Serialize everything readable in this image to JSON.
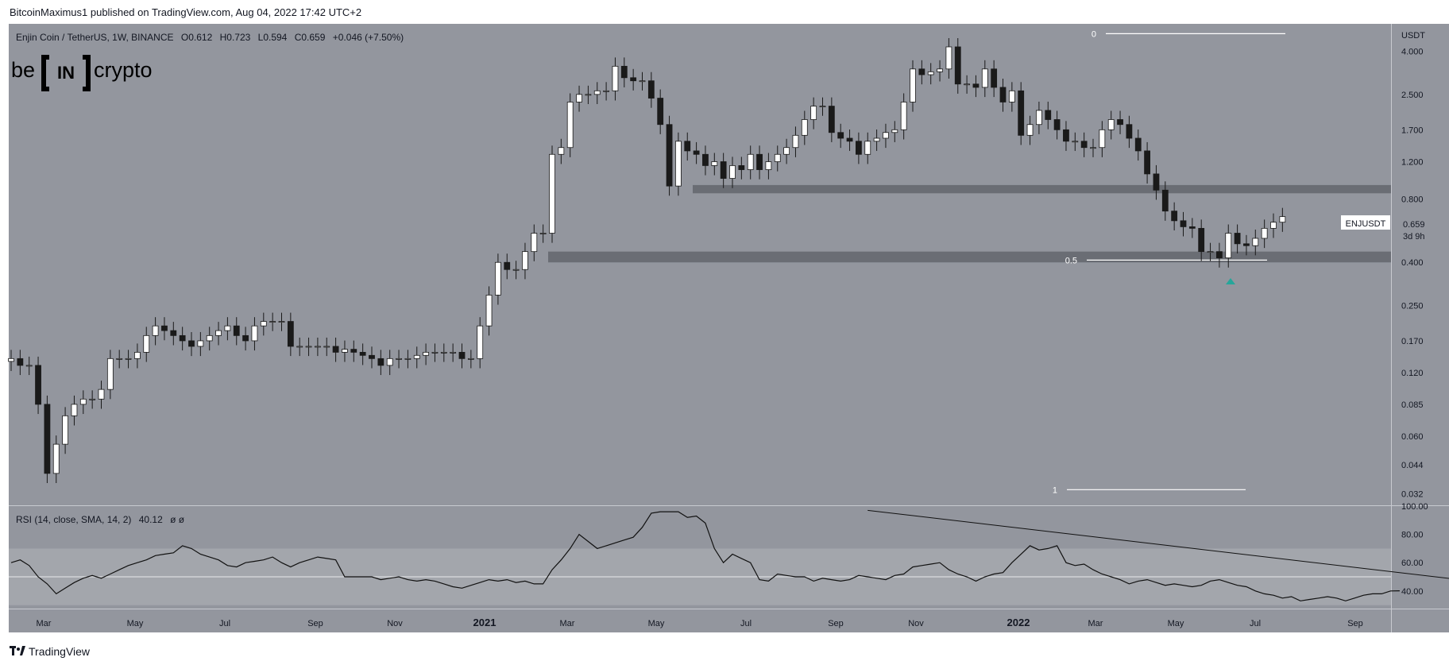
{
  "publish_line": "BitcoinMaximus1 published on TradingView.com, Aug 04, 2022 17:42 UTC+2",
  "footer_brand": "TradingView",
  "logo": {
    "left": "be",
    "middle": "IN",
    "right": "crypto"
  },
  "colors": {
    "pane_bg": "#93969e",
    "candle_up": "#ffffff",
    "candle_down": "#1a1a1a",
    "zone": "#5c5f66",
    "rsi_band": "#a3a6ac",
    "arrow": "#26a69a"
  },
  "chart_data": [
    {
      "type": "candlestick",
      "title": "Enjin Coin / TetherUS, 1W, BINANCE",
      "ohlc": {
        "O_label": "O",
        "O": "0.612",
        "H_label": "H",
        "H": "0.723",
        "L_label": "L",
        "L": "0.594",
        "C_label": "C",
        "C": "0.659",
        "change": "+0.046 (+7.50%)"
      },
      "y_axis_unit": "USDT",
      "y_scale": "log",
      "y_ticks": [
        "4.000",
        "2.500",
        "1.700",
        "1.200",
        "0.800",
        "0.400",
        "0.250",
        "0.170",
        "0.120",
        "0.085",
        "0.060",
        "0.044",
        "0.032"
      ],
      "ylim": [
        0.028,
        5.4
      ],
      "x_ticks": [
        "Mar",
        "May",
        "Jul",
        "Sep",
        "Nov",
        "2021",
        "Mar",
        "May",
        "Jul",
        "Sep",
        "Nov",
        "2022",
        "Mar",
        "May",
        "Jul",
        "Sep"
      ],
      "symbol_label": "ENJUSDT",
      "last_price": "0.659",
      "countdown": "3d 9h",
      "fib_levels": [
        {
          "label": "0",
          "value": 4.85
        },
        {
          "label": "0.5",
          "value": 0.41
        },
        {
          "label": "1",
          "value": 0.0335
        }
      ],
      "zones": [
        {
          "low": 0.85,
          "high": 0.93
        },
        {
          "low": 0.4,
          "high": 0.45
        }
      ],
      "weekly_closes": [
        0.14,
        0.13,
        0.13,
        0.085,
        0.04,
        0.055,
        0.075,
        0.085,
        0.09,
        0.09,
        0.1,
        0.14,
        0.14,
        0.14,
        0.15,
        0.18,
        0.2,
        0.19,
        0.18,
        0.17,
        0.16,
        0.17,
        0.18,
        0.19,
        0.2,
        0.18,
        0.17,
        0.2,
        0.21,
        0.21,
        0.21,
        0.16,
        0.16,
        0.16,
        0.16,
        0.16,
        0.15,
        0.155,
        0.15,
        0.145,
        0.14,
        0.13,
        0.14,
        0.14,
        0.14,
        0.145,
        0.15,
        0.15,
        0.15,
        0.15,
        0.14,
        0.14,
        0.2,
        0.28,
        0.4,
        0.37,
        0.37,
        0.45,
        0.55,
        0.55,
        1.3,
        1.4,
        2.3,
        2.5,
        2.5,
        2.6,
        2.6,
        3.4,
        3.0,
        2.9,
        2.9,
        2.4,
        1.8,
        0.92,
        1.5,
        1.35,
        1.3,
        1.15,
        1.2,
        1.0,
        1.15,
        1.1,
        1.3,
        1.1,
        1.2,
        1.3,
        1.4,
        1.6,
        1.9,
        2.2,
        2.2,
        1.65,
        1.55,
        1.5,
        1.3,
        1.5,
        1.55,
        1.65,
        1.7,
        2.3,
        3.3,
        3.1,
        3.2,
        3.3,
        4.2,
        2.8,
        2.8,
        2.7,
        3.3,
        2.7,
        2.3,
        2.6,
        1.6,
        1.8,
        2.1,
        1.9,
        1.7,
        1.5,
        1.5,
        1.4,
        1.4,
        1.7,
        1.9,
        1.8,
        1.55,
        1.35,
        1.05,
        0.88,
        0.7,
        0.63,
        0.59,
        0.58,
        0.45,
        0.45,
        0.42,
        0.55,
        0.49,
        0.48,
        0.52,
        0.58,
        0.62,
        0.659
      ]
    },
    {
      "type": "line",
      "title": "RSI (14, close, SMA, 14, 2)",
      "value": "40.12",
      "extra": "ø ø",
      "y_ticks": [
        "100.00",
        "80.00",
        "60.00",
        "40.00"
      ],
      "ylim": [
        27,
        100
      ],
      "band": [
        30,
        70
      ],
      "mid": 50,
      "trendline": [
        {
          "week": 95,
          "value": 97
        },
        {
          "week": 164,
          "value": 45.5
        }
      ],
      "values": [
        60,
        62,
        58,
        50,
        45,
        38,
        42,
        46,
        49,
        51,
        49,
        52,
        55,
        58,
        60,
        62,
        65,
        66,
        67,
        72,
        70,
        66,
        64,
        62,
        58,
        57,
        60,
        61,
        62,
        64,
        60,
        57,
        60,
        62,
        64,
        63,
        62,
        50,
        50,
        50,
        50,
        48,
        49,
        50,
        48,
        47,
        48,
        47,
        45,
        43,
        42,
        44,
        46,
        48,
        47,
        48,
        46,
        47,
        45,
        45,
        55,
        62,
        70,
        80,
        75,
        70,
        72,
        74,
        76,
        78,
        85,
        95,
        96,
        96,
        96,
        92,
        93,
        88,
        70,
        60,
        66,
        63,
        60,
        48,
        47,
        52,
        51,
        50,
        50,
        47,
        49,
        48,
        47,
        48,
        51,
        50,
        49,
        48,
        51,
        52,
        57,
        58,
        59,
        60,
        55,
        52,
        50,
        47,
        50,
        52,
        53,
        60,
        66,
        72,
        69,
        70,
        72,
        60,
        58,
        59,
        55,
        52,
        50,
        48,
        45,
        47,
        48,
        46,
        44,
        45,
        44,
        43,
        44,
        47,
        48,
        46,
        44,
        43,
        40,
        38,
        37,
        35,
        36,
        33,
        34,
        35,
        36,
        35,
        33,
        35,
        37,
        38,
        38,
        40,
        40.12
      ]
    }
  ]
}
